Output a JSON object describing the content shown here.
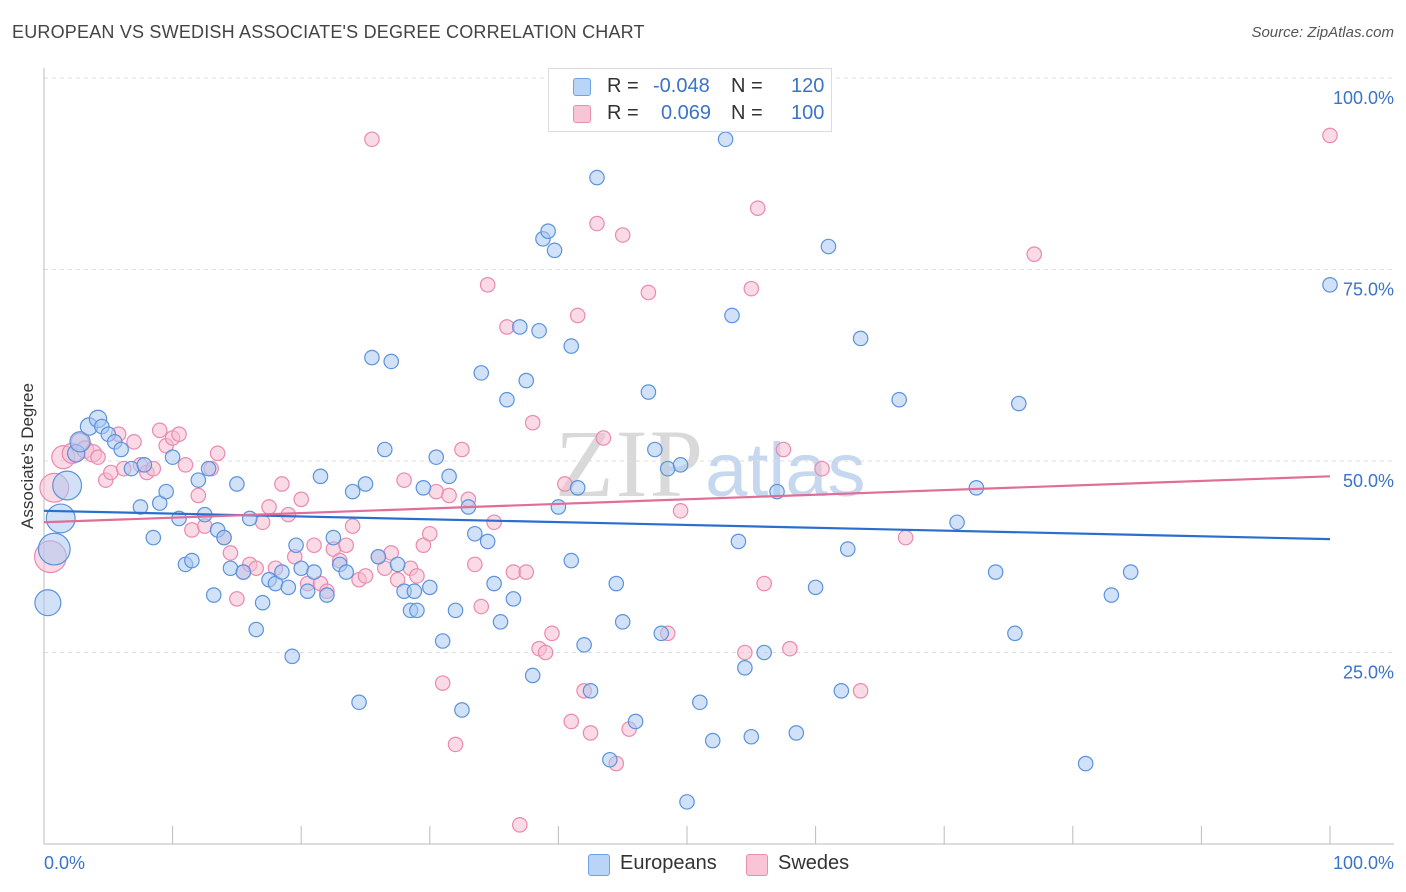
{
  "header": {
    "title": "EUROPEAN VS SWEDISH ASSOCIATE'S DEGREE CORRELATION CHART",
    "source": "Source: ZipAtlas.com"
  },
  "legend": {
    "rows": [
      {
        "r_label": "R =",
        "r_value": "-0.048",
        "n_label": "N =",
        "n_value": "120"
      },
      {
        "r_label": "R =",
        "r_value": "0.069",
        "n_label": "N =",
        "n_value": "100"
      }
    ]
  },
  "bottom_legend": {
    "europeans": "Europeans",
    "swedes": "Swedes"
  },
  "watermark": {
    "zip": "ZIP",
    "atlas": "atlas"
  },
  "colors": {
    "blue_fill": "#a9c9f2",
    "blue_stroke": "#5b93dc",
    "blue_line": "#2a6fce",
    "pink_fill": "#f6bcd0",
    "pink_stroke": "#e98aaf",
    "pink_line": "#e06e98",
    "tick_label": "#3a73c9",
    "grid": "#dddddd"
  },
  "chart_data": {
    "type": "scatter",
    "title": "EUROPEAN VS SWEDISH ASSOCIATE'S DEGREE CORRELATION CHART",
    "xlabel": "",
    "ylabel": "Associate's Degree",
    "xlim": [
      0,
      100
    ],
    "ylim": [
      0,
      100
    ],
    "x_tick_labels": [
      "0.0%",
      "100.0%"
    ],
    "y_ticks": [
      25,
      50,
      75,
      100
    ],
    "y_tick_labels": [
      "25.0%",
      "50.0%",
      "75.0%",
      "100.0%"
    ],
    "series": [
      {
        "name": "Europeans",
        "r": -0.048,
        "n": 120,
        "trend": [
          [
            0,
            43.5
          ],
          [
            100,
            39.8
          ]
        ],
        "points": [
          [
            0.3,
            31.5,
            18
          ],
          [
            0.8,
            38.5,
            22
          ],
          [
            1.3,
            42.5,
            20
          ],
          [
            1.8,
            46.8,
            20
          ],
          [
            2.5,
            51.0,
            12
          ],
          [
            2.8,
            52.5,
            14
          ],
          [
            3.5,
            54.5,
            12
          ],
          [
            4.2,
            55.5,
            12
          ],
          [
            4.5,
            54.5,
            10
          ],
          [
            5.0,
            53.5,
            10
          ],
          [
            5.5,
            52.5,
            10
          ],
          [
            6.0,
            51.5,
            10
          ],
          [
            6.8,
            49.0,
            10
          ],
          [
            7.5,
            44.0,
            10
          ],
          [
            7.8,
            49.5,
            10
          ],
          [
            8.5,
            40.0,
            10
          ],
          [
            9.0,
            44.5,
            10
          ],
          [
            9.5,
            46.0,
            10
          ],
          [
            10.0,
            50.5,
            10
          ],
          [
            10.5,
            42.5,
            10
          ],
          [
            11.0,
            36.5,
            10
          ],
          [
            11.5,
            37.0,
            10
          ],
          [
            12.0,
            47.5,
            10
          ],
          [
            12.5,
            43.0,
            10
          ],
          [
            12.8,
            49.0,
            10
          ],
          [
            13.2,
            32.5,
            10
          ],
          [
            13.5,
            41.0,
            10
          ],
          [
            14.0,
            40.0,
            10
          ],
          [
            14.5,
            36.0,
            10
          ],
          [
            15.0,
            47.0,
            10
          ],
          [
            15.5,
            35.5,
            10
          ],
          [
            16.0,
            42.5,
            10
          ],
          [
            16.5,
            28.0,
            10
          ],
          [
            17.0,
            31.5,
            10
          ],
          [
            17.5,
            34.5,
            10
          ],
          [
            18.0,
            34.0,
            10
          ],
          [
            18.5,
            35.5,
            10
          ],
          [
            19.0,
            33.5,
            10
          ],
          [
            19.3,
            24.5,
            10
          ],
          [
            19.6,
            39.0,
            10
          ],
          [
            20.0,
            36.0,
            10
          ],
          [
            20.5,
            33.0,
            10
          ],
          [
            21.0,
            35.5,
            10
          ],
          [
            21.5,
            48.0,
            10
          ],
          [
            22.0,
            32.5,
            10
          ],
          [
            22.5,
            40.0,
            10
          ],
          [
            23.0,
            36.5,
            10
          ],
          [
            23.5,
            35.5,
            10
          ],
          [
            24.0,
            46.0,
            10
          ],
          [
            24.5,
            18.5,
            10
          ],
          [
            25.0,
            47.0,
            10
          ],
          [
            25.5,
            63.5,
            10
          ],
          [
            26.0,
            37.5,
            10
          ],
          [
            26.5,
            51.5,
            10
          ],
          [
            27.0,
            63.0,
            10
          ],
          [
            27.5,
            36.5,
            10
          ],
          [
            28.0,
            33.0,
            10
          ],
          [
            28.5,
            30.5,
            10
          ],
          [
            28.8,
            33.0,
            10
          ],
          [
            29.0,
            30.5,
            10
          ],
          [
            29.5,
            46.5,
            10
          ],
          [
            30.0,
            33.5,
            10
          ],
          [
            30.5,
            50.5,
            10
          ],
          [
            31.0,
            26.5,
            10
          ],
          [
            31.5,
            48.0,
            10
          ],
          [
            32.0,
            30.5,
            10
          ],
          [
            32.5,
            17.5,
            10
          ],
          [
            33.0,
            44.0,
            10
          ],
          [
            33.5,
            40.5,
            10
          ],
          [
            34.0,
            61.5,
            10
          ],
          [
            34.5,
            39.5,
            10
          ],
          [
            35.0,
            34.0,
            10
          ],
          [
            35.5,
            29.0,
            10
          ],
          [
            36.0,
            58.0,
            10
          ],
          [
            36.5,
            32.0,
            10
          ],
          [
            37.0,
            67.5,
            10
          ],
          [
            37.5,
            60.5,
            10
          ],
          [
            38.0,
            22.0,
            10
          ],
          [
            38.5,
            67.0,
            10
          ],
          [
            38.8,
            79.0,
            10
          ],
          [
            39.2,
            80.0,
            10
          ],
          [
            39.7,
            77.5,
            10
          ],
          [
            40.0,
            44.0,
            10
          ],
          [
            41.0,
            65.0,
            10
          ],
          [
            41.0,
            37.0,
            10
          ],
          [
            41.5,
            46.5,
            10
          ],
          [
            42.0,
            26.0,
            10
          ],
          [
            42.5,
            20.0,
            10
          ],
          [
            43.0,
            87.0,
            10
          ],
          [
            44.0,
            11.0,
            10
          ],
          [
            44.5,
            34.0,
            10
          ],
          [
            45.0,
            29.0,
            10
          ],
          [
            46.0,
            16.0,
            10
          ],
          [
            47.0,
            59.0,
            10
          ],
          [
            47.5,
            51.5,
            10
          ],
          [
            48.0,
            27.5,
            10
          ],
          [
            48.5,
            49.0,
            10
          ],
          [
            49.5,
            49.5,
            10
          ],
          [
            50.0,
            5.5,
            10
          ],
          [
            51.0,
            18.5,
            10
          ],
          [
            52.0,
            13.5,
            10
          ],
          [
            53.0,
            92.0,
            10
          ],
          [
            53.5,
            69.0,
            10
          ],
          [
            54.0,
            39.5,
            10
          ],
          [
            54.5,
            23.0,
            10
          ],
          [
            55.0,
            14.0,
            10
          ],
          [
            56.0,
            25.0,
            10
          ],
          [
            57.0,
            46.0,
            10
          ],
          [
            58.5,
            14.5,
            10
          ],
          [
            60.0,
            33.5,
            10
          ],
          [
            61.0,
            78.0,
            10
          ],
          [
            62.0,
            20.0,
            10
          ],
          [
            62.5,
            38.5,
            10
          ],
          [
            63.5,
            66.0,
            10
          ],
          [
            66.5,
            58.0,
            10
          ],
          [
            71.0,
            42.0,
            10
          ],
          [
            72.5,
            46.5,
            10
          ],
          [
            74.0,
            35.5,
            10
          ],
          [
            75.5,
            27.5,
            10
          ],
          [
            75.8,
            57.5,
            10
          ],
          [
            81.0,
            10.5,
            10
          ],
          [
            83.0,
            32.5,
            10
          ],
          [
            84.5,
            35.5,
            10
          ],
          [
            100.0,
            73.0,
            10
          ]
        ]
      },
      {
        "name": "Swedes",
        "r": 0.069,
        "n": 100,
        "trend": [
          [
            0,
            42.0
          ],
          [
            100,
            48.0
          ]
        ],
        "points": [
          [
            0.5,
            37.5,
            22
          ],
          [
            0.8,
            46.5,
            20
          ],
          [
            1.5,
            50.5,
            16
          ],
          [
            2.2,
            51.0,
            14
          ],
          [
            2.8,
            52.5,
            12
          ],
          [
            3.2,
            51.5,
            12
          ],
          [
            3.8,
            51.0,
            12
          ],
          [
            4.2,
            50.5,
            10
          ],
          [
            4.8,
            47.5,
            10
          ],
          [
            5.2,
            48.5,
            10
          ],
          [
            5.8,
            53.5,
            10
          ],
          [
            6.2,
            49.0,
            10
          ],
          [
            7.0,
            52.5,
            10
          ],
          [
            7.5,
            49.5,
            10
          ],
          [
            8.0,
            48.5,
            10
          ],
          [
            8.5,
            49.0,
            10
          ],
          [
            9.0,
            54.0,
            10
          ],
          [
            9.5,
            52.0,
            10
          ],
          [
            10.0,
            53.0,
            10
          ],
          [
            10.5,
            53.5,
            10
          ],
          [
            11.0,
            49.5,
            10
          ],
          [
            11.5,
            41.0,
            10
          ],
          [
            12.0,
            45.5,
            10
          ],
          [
            12.5,
            41.5,
            10
          ],
          [
            13.0,
            49.0,
            10
          ],
          [
            13.5,
            51.0,
            10
          ],
          [
            14.0,
            40.0,
            10
          ],
          [
            14.5,
            38.0,
            10
          ],
          [
            15.0,
            32.0,
            10
          ],
          [
            15.5,
            35.5,
            10
          ],
          [
            16.0,
            36.5,
            10
          ],
          [
            16.5,
            36.0,
            10
          ],
          [
            17.0,
            42.0,
            10
          ],
          [
            17.5,
            44.0,
            10
          ],
          [
            18.0,
            36.0,
            10
          ],
          [
            18.5,
            47.0,
            10
          ],
          [
            19.0,
            43.0,
            10
          ],
          [
            19.5,
            37.5,
            10
          ],
          [
            20.0,
            45.0,
            10
          ],
          [
            20.5,
            34.0,
            10
          ],
          [
            21.0,
            39.0,
            10
          ],
          [
            21.5,
            34.0,
            10
          ],
          [
            22.0,
            33.0,
            10
          ],
          [
            22.5,
            38.5,
            10
          ],
          [
            23.0,
            37.0,
            10
          ],
          [
            23.5,
            39.0,
            10
          ],
          [
            24.0,
            41.5,
            10
          ],
          [
            24.5,
            34.5,
            10
          ],
          [
            25.0,
            35.0,
            10
          ],
          [
            25.5,
            92.0,
            10
          ],
          [
            26.0,
            37.5,
            10
          ],
          [
            26.5,
            36.0,
            10
          ],
          [
            27.0,
            38.0,
            10
          ],
          [
            27.5,
            34.5,
            10
          ],
          [
            28.0,
            47.5,
            10
          ],
          [
            28.5,
            36.0,
            10
          ],
          [
            29.0,
            35.0,
            10
          ],
          [
            29.5,
            39.0,
            10
          ],
          [
            30.0,
            40.5,
            10
          ],
          [
            30.5,
            46.0,
            10
          ],
          [
            31.0,
            21.0,
            10
          ],
          [
            31.5,
            45.5,
            10
          ],
          [
            32.0,
            13.0,
            10
          ],
          [
            32.5,
            51.5,
            10
          ],
          [
            33.0,
            45.0,
            10
          ],
          [
            33.5,
            36.5,
            10
          ],
          [
            34.0,
            31.0,
            10
          ],
          [
            34.5,
            73.0,
            10
          ],
          [
            35.0,
            42.0,
            10
          ],
          [
            36.0,
            67.5,
            10
          ],
          [
            36.5,
            35.5,
            10
          ],
          [
            37.0,
            2.5,
            10
          ],
          [
            37.5,
            35.5,
            10
          ],
          [
            38.0,
            55.0,
            10
          ],
          [
            38.5,
            25.5,
            10
          ],
          [
            39.0,
            25.0,
            10
          ],
          [
            39.5,
            27.5,
            10
          ],
          [
            40.5,
            47.0,
            10
          ],
          [
            41.0,
            16.0,
            10
          ],
          [
            41.5,
            69.0,
            10
          ],
          [
            42.0,
            20.0,
            10
          ],
          [
            42.5,
            14.5,
            10
          ],
          [
            43.0,
            81.0,
            10
          ],
          [
            43.5,
            53.0,
            10
          ],
          [
            44.5,
            10.5,
            10
          ],
          [
            45.0,
            79.5,
            10
          ],
          [
            45.5,
            15.0,
            10
          ],
          [
            47.0,
            72.0,
            10
          ],
          [
            48.5,
            27.5,
            10
          ],
          [
            49.5,
            43.5,
            10
          ],
          [
            54.5,
            25.0,
            10
          ],
          [
            55.0,
            72.5,
            10
          ],
          [
            55.5,
            83.0,
            10
          ],
          [
            56.0,
            34.0,
            10
          ],
          [
            57.5,
            51.5,
            10
          ],
          [
            58.0,
            25.5,
            10
          ],
          [
            60.5,
            49.0,
            10
          ],
          [
            63.5,
            20.0,
            10
          ],
          [
            67.0,
            40.0,
            10
          ],
          [
            77.0,
            77.0,
            10
          ],
          [
            100.0,
            92.5,
            10
          ]
        ]
      }
    ]
  }
}
